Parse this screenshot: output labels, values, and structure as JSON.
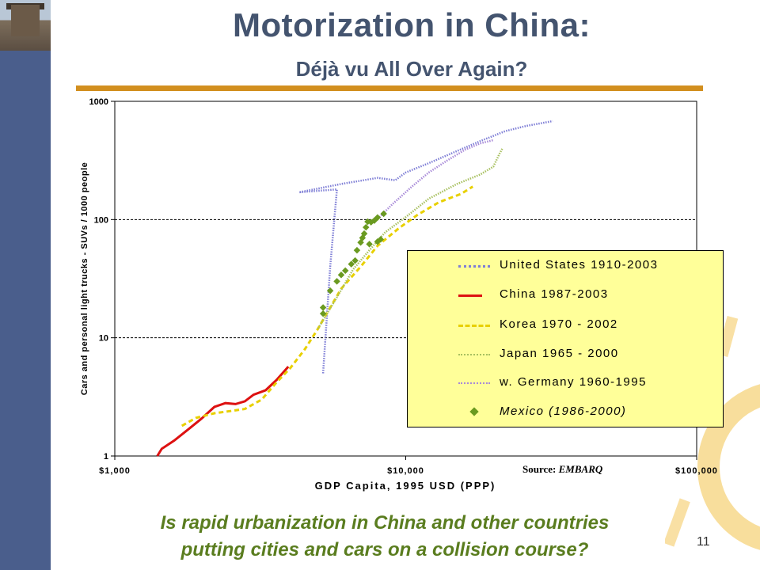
{
  "slide": {
    "title": "Motorization in China:",
    "subtitle": "Déjà vu All Over Again?",
    "question_line1": "Is rapid urbanization in China and other countries",
    "question_line2": "putting cities and cars on a collision course?",
    "page_number": "11",
    "source_label": "Source:",
    "source_name": "EMBARQ"
  },
  "colors": {
    "sidebar": "#4a5e8c",
    "title": "#44546f",
    "accent_rule": "#d28f1f",
    "question": "#5a7d1f",
    "legend_bg": "#ffff99"
  },
  "chart_data": {
    "type": "scatter",
    "xlabel": "GDP Capita, 1995 USD (PPP)",
    "ylabel": "Cars and personal light trucks - SUVs / 1000 people",
    "x_scale": "log",
    "y_scale": "log",
    "xlim": [
      1000,
      100000
    ],
    "ylim": [
      1,
      1000
    ],
    "x_ticks": [
      {
        "value": 1000,
        "label": "$1,000"
      },
      {
        "value": 10000,
        "label": "$10,000"
      },
      {
        "value": 100000,
        "label": "$100,000"
      }
    ],
    "y_ticks": [
      {
        "value": 1,
        "label": "1"
      },
      {
        "value": 10,
        "label": "10"
      },
      {
        "value": 100,
        "label": "100"
      },
      {
        "value": 1000,
        "label": "1000"
      }
    ],
    "grid": "horizontal dashed",
    "legend_position": "right",
    "series": [
      {
        "name": "United States 1910-2003",
        "color": "#7f7fd6",
        "style": "dotted",
        "points": [
          [
            5200,
            5
          ],
          [
            5500,
            40
          ],
          [
            5700,
            110
          ],
          [
            5800,
            180
          ],
          [
            4300,
            170
          ],
          [
            6000,
            200
          ],
          [
            8000,
            225
          ],
          [
            9200,
            215
          ],
          [
            10000,
            250
          ],
          [
            12000,
            300
          ],
          [
            15000,
            380
          ],
          [
            18000,
            460
          ],
          [
            22000,
            560
          ],
          [
            26000,
            620
          ],
          [
            32000,
            680
          ]
        ]
      },
      {
        "name": "China 1987-2003",
        "color": "#dd1111",
        "style": "solid",
        "points": [
          [
            1400,
            1
          ],
          [
            1450,
            1.15
          ],
          [
            1600,
            1.35
          ],
          [
            1800,
            1.7
          ],
          [
            2000,
            2.1
          ],
          [
            2200,
            2.6
          ],
          [
            2400,
            2.8
          ],
          [
            2600,
            2.75
          ],
          [
            2800,
            2.9
          ],
          [
            3000,
            3.3
          ],
          [
            3300,
            3.6
          ],
          [
            3600,
            4.4
          ],
          [
            3950,
            5.7
          ]
        ]
      },
      {
        "name": "Korea 1970 - 2002",
        "color": "#e8d000",
        "style": "dashed",
        "points": [
          [
            1700,
            1.8
          ],
          [
            1900,
            2.1
          ],
          [
            2200,
            2.3
          ],
          [
            2500,
            2.4
          ],
          [
            2800,
            2.5
          ],
          [
            3200,
            3.0
          ],
          [
            3600,
            4.2
          ],
          [
            4000,
            5.5
          ],
          [
            4500,
            8
          ],
          [
            5000,
            12
          ],
          [
            5500,
            18
          ],
          [
            6000,
            26
          ],
          [
            7000,
            40
          ],
          [
            8000,
            60
          ],
          [
            9500,
            85
          ],
          [
            11000,
            110
          ],
          [
            13000,
            140
          ],
          [
            15500,
            165
          ],
          [
            17000,
            190
          ]
        ]
      },
      {
        "name": "Japan 1965 - 2000",
        "color": "#a8c060",
        "style": "dotted",
        "points": [
          [
            5000,
            12
          ],
          [
            5800,
            22
          ],
          [
            6600,
            38
          ],
          [
            7500,
            55
          ],
          [
            8500,
            78
          ],
          [
            10000,
            105
          ],
          [
            12000,
            150
          ],
          [
            15000,
            200
          ],
          [
            18000,
            240
          ],
          [
            20000,
            280
          ],
          [
            21000,
            360
          ],
          [
            21500,
            400
          ]
        ]
      },
      {
        "name": "w. Germany 1960-1995",
        "color": "#a88ad8",
        "style": "dotted",
        "points": [
          [
            7800,
            95
          ],
          [
            9000,
            135
          ],
          [
            10500,
            190
          ],
          [
            12000,
            250
          ],
          [
            14000,
            320
          ],
          [
            16000,
            390
          ],
          [
            18000,
            440
          ],
          [
            20000,
            470
          ]
        ]
      },
      {
        "name": "Mexico (1986-2000)",
        "color": "#6a9a20",
        "style": "markers",
        "points": [
          [
            5200,
            16
          ],
          [
            5200,
            18
          ],
          [
            5500,
            25
          ],
          [
            5800,
            30
          ],
          [
            6000,
            34
          ],
          [
            6200,
            37
          ],
          [
            6500,
            42
          ],
          [
            6700,
            45
          ],
          [
            6800,
            55
          ],
          [
            7000,
            64
          ],
          [
            7100,
            70
          ],
          [
            7200,
            76
          ],
          [
            7300,
            86
          ],
          [
            7400,
            96
          ],
          [
            7600,
            95
          ],
          [
            7800,
            98
          ],
          [
            8000,
            104
          ],
          [
            8400,
            112
          ],
          [
            7500,
            62
          ],
          [
            8000,
            65
          ],
          [
            8200,
            68
          ]
        ]
      }
    ]
  }
}
